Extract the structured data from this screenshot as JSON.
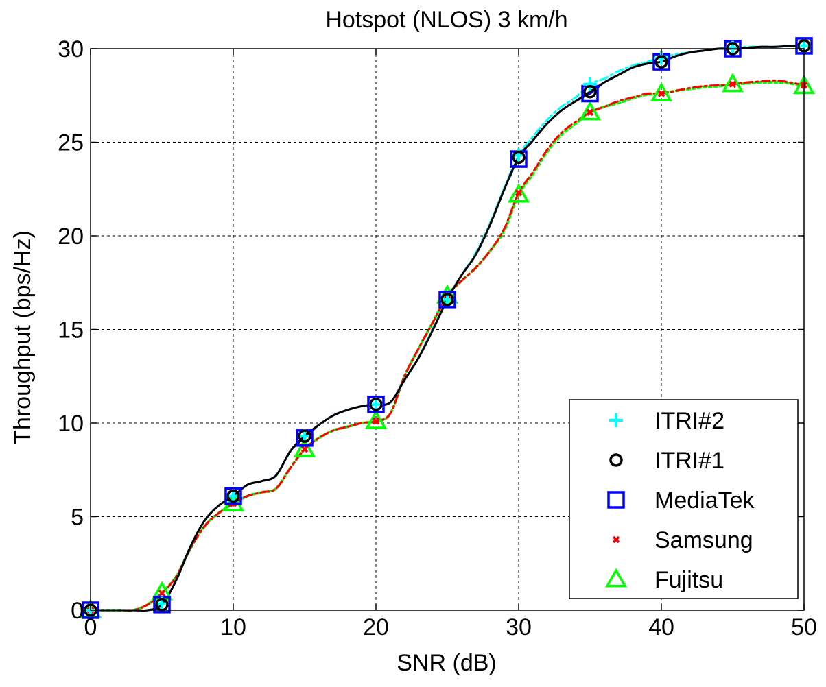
{
  "chart_data": {
    "type": "line",
    "title": "Hotspot (NLOS) 3 km/h",
    "xlabel": "SNR (dB)",
    "ylabel": "Throughput (bps/Hz)",
    "xlim": [
      0,
      50
    ],
    "ylim": [
      0,
      30
    ],
    "xticks": [
      0,
      10,
      20,
      30,
      40,
      50
    ],
    "yticks": [
      0,
      5,
      10,
      15,
      20,
      25,
      30
    ],
    "grid": true,
    "legend_position": "bottom-right",
    "x": [
      0,
      1,
      2,
      3,
      4,
      5,
      6,
      7,
      8,
      9,
      10,
      11,
      12,
      13,
      14,
      15,
      16,
      17,
      18,
      19,
      20,
      21,
      22,
      23,
      24,
      25,
      26,
      27,
      28,
      29,
      30,
      31,
      32,
      33,
      34,
      35,
      36,
      37,
      38,
      39,
      40,
      41,
      42,
      43,
      44,
      45,
      46,
      47,
      48,
      49,
      50
    ],
    "series": [
      {
        "name": "ITRI#2",
        "color": "#00ffff",
        "dash": "dashdot",
        "marker": "plus",
        "values": [
          0,
          0,
          0,
          0,
          0,
          0.35,
          1.6,
          3.4,
          4.8,
          5.6,
          6.1,
          6.7,
          6.9,
          7.2,
          8.5,
          9.3,
          9.9,
          10.4,
          10.7,
          10.9,
          11.0,
          11.1,
          12.3,
          13.5,
          15.1,
          16.6,
          17.9,
          19.1,
          20.7,
          22.6,
          24.3,
          25.3,
          26.2,
          26.9,
          27.4,
          28.1,
          28.4,
          28.8,
          29.1,
          29.3,
          29.5,
          29.7,
          29.8,
          29.9,
          30.0,
          30.05,
          30.1,
          30.1,
          30.1,
          30.15,
          30.15
        ]
      },
      {
        "name": "ITRI#1",
        "color": "#000000",
        "dash": "solid",
        "marker": "circle",
        "values": [
          0,
          0,
          0,
          0,
          0,
          0.3,
          1.6,
          3.4,
          4.8,
          5.6,
          6.1,
          6.7,
          6.9,
          7.2,
          8.5,
          9.3,
          9.9,
          10.4,
          10.7,
          10.9,
          11.0,
          11.1,
          12.3,
          13.5,
          15.0,
          16.6,
          17.9,
          19.0,
          20.6,
          22.5,
          24.2,
          25.1,
          26.0,
          26.7,
          27.2,
          27.7,
          28.2,
          28.6,
          29.0,
          29.2,
          29.3,
          29.6,
          29.8,
          29.9,
          30.0,
          30.0,
          30.05,
          30.1,
          30.1,
          30.15,
          30.15
        ]
      },
      {
        "name": "MediaTek",
        "color": "#0000ff",
        "dash": "dashed",
        "marker": "square",
        "values": [
          0,
          0,
          0,
          0,
          0,
          0.3,
          1.6,
          3.4,
          4.8,
          5.6,
          6.1,
          6.7,
          6.9,
          7.2,
          8.5,
          9.2,
          9.9,
          10.4,
          10.7,
          10.9,
          11.0,
          11.1,
          12.3,
          13.5,
          15.0,
          16.6,
          17.9,
          19.0,
          20.6,
          22.5,
          24.1,
          25.1,
          26.0,
          26.7,
          27.2,
          27.6,
          28.2,
          28.6,
          29.0,
          29.2,
          29.3,
          29.6,
          29.8,
          29.9,
          30.0,
          30.0,
          30.05,
          30.1,
          30.1,
          30.15,
          30.15
        ]
      },
      {
        "name": "Samsung",
        "color": "#ff0000",
        "dash": "dashdot",
        "marker": "x",
        "values": [
          0,
          0,
          0,
          0,
          0.3,
          0.9,
          1.8,
          3.3,
          4.5,
          5.2,
          5.7,
          6.1,
          6.3,
          6.5,
          7.6,
          8.6,
          9.2,
          9.6,
          9.8,
          10.0,
          10.1,
          10.5,
          12.5,
          14.0,
          15.4,
          16.8,
          17.6,
          18.3,
          19.2,
          20.4,
          22.3,
          23.4,
          24.6,
          25.5,
          26.1,
          26.6,
          26.9,
          27.2,
          27.4,
          27.6,
          27.6,
          27.75,
          27.9,
          28.0,
          28.05,
          28.1,
          28.2,
          28.25,
          28.3,
          28.2,
          28.05
        ]
      },
      {
        "name": "Fujitsu",
        "color": "#00ff00",
        "dash": "dotted",
        "marker": "triangle",
        "values": [
          0,
          0,
          0,
          0,
          0.3,
          0.95,
          1.8,
          3.3,
          4.5,
          5.2,
          5.7,
          6.1,
          6.3,
          6.5,
          7.6,
          8.6,
          9.2,
          9.6,
          9.8,
          10.0,
          10.1,
          10.5,
          12.5,
          14.0,
          15.4,
          16.8,
          17.6,
          18.3,
          19.2,
          20.3,
          22.2,
          23.3,
          24.5,
          25.4,
          26.0,
          26.6,
          26.9,
          27.1,
          27.35,
          27.55,
          27.6,
          27.75,
          27.85,
          27.95,
          28.0,
          28.1,
          28.15,
          28.2,
          28.2,
          28.15,
          28.0
        ]
      }
    ]
  }
}
